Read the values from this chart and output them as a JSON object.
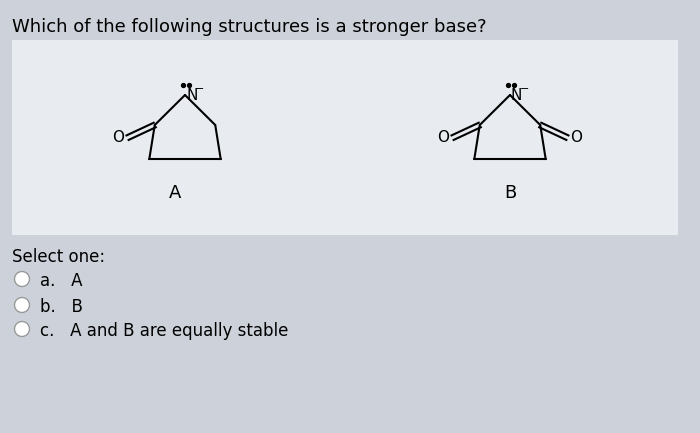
{
  "title": "Which of the following structures is a stronger base?",
  "box_color": "#e8ecf0",
  "page_bg": "#cdd2da",
  "select_text": "Select one:",
  "options": [
    "a.   A",
    "b.   B",
    "c.   A and B are equally stable"
  ],
  "label_A": "A",
  "label_B": "B",
  "title_fontsize": 13,
  "option_fontsize": 12,
  "label_fontsize": 13
}
